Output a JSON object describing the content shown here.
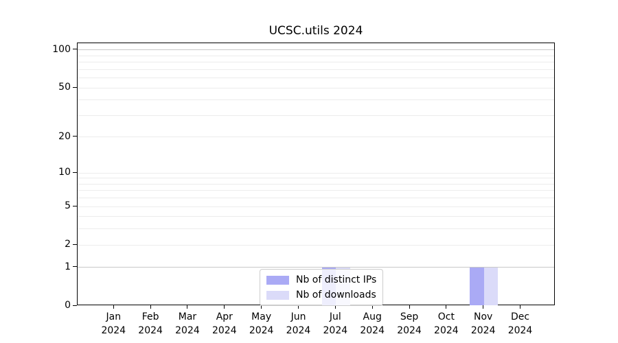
{
  "figure": {
    "title": "UCSC.utils 2024"
  },
  "chart_data": {
    "type": "bar",
    "title": "UCSC.utils 2024",
    "xlabel": "",
    "ylabel": "",
    "scale": "log1p",
    "grid": true,
    "legend_position": "lower center",
    "categories": [
      "Jan",
      "Feb",
      "Mar",
      "Apr",
      "May",
      "Jun",
      "Jul",
      "Aug",
      "Sep",
      "Oct",
      "Nov",
      "Dec"
    ],
    "year": "2024",
    "series": [
      {
        "name": "Nb of distinct IPs",
        "color": "#aaaaf5",
        "values": [
          0,
          0,
          0,
          0,
          0,
          0,
          1,
          0,
          0,
          0,
          1,
          0
        ]
      },
      {
        "name": "Nb of downloads",
        "color": "#dbdbf9",
        "values": [
          0,
          0,
          0,
          0,
          0,
          0,
          1,
          0,
          0,
          0,
          1,
          0
        ]
      }
    ],
    "y_ticks": [
      0,
      1,
      2,
      5,
      10,
      20,
      50,
      100
    ],
    "ylim": [
      0,
      113
    ],
    "gridlines": {
      "values": [
        1,
        2,
        3,
        4,
        5,
        6,
        7,
        8,
        9,
        10,
        20,
        30,
        40,
        50,
        60,
        70,
        80,
        90,
        100
      ],
      "emphasis_values": [
        1,
        100
      ],
      "emphasis_color": "#c8c8c8",
      "minor_color": "#ececec"
    },
    "axis_color": "#000000"
  }
}
